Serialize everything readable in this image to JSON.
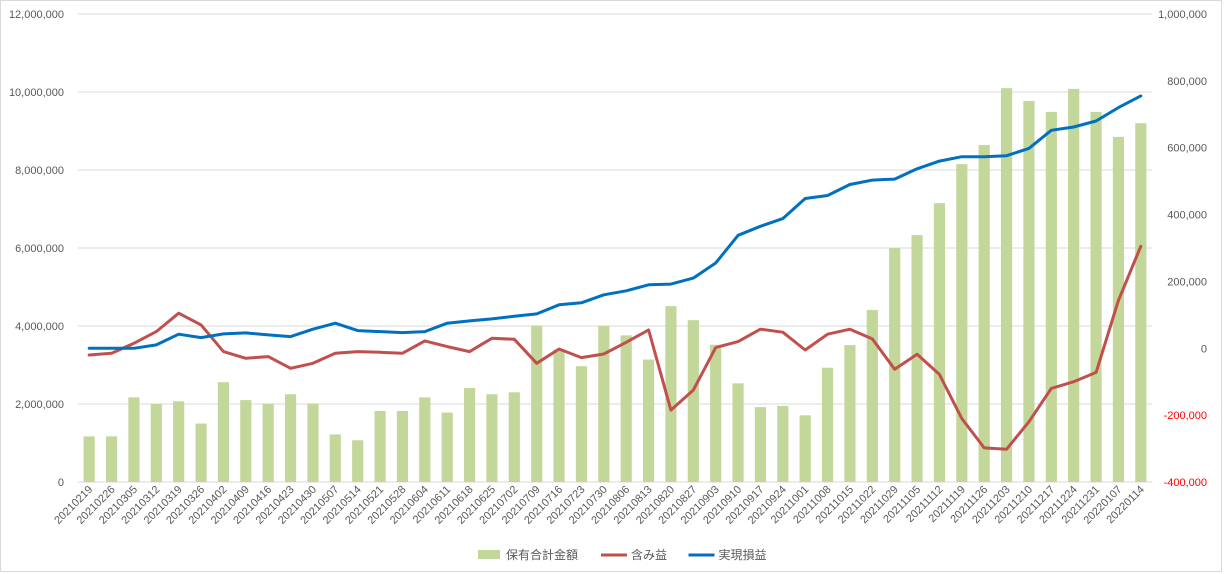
{
  "chart_data": {
    "type": "bar",
    "title": "",
    "categories": [
      "20210219",
      "20210226",
      "20210305",
      "20210312",
      "20210319",
      "20210326",
      "20210402",
      "20210409",
      "20210416",
      "20210423",
      "20210430",
      "20210507",
      "20210514",
      "20210521",
      "20210528",
      "20210604",
      "20210611",
      "20210618",
      "20210625",
      "20210702",
      "20210709",
      "20210716",
      "20210723",
      "20210730",
      "20210806",
      "20210813",
      "20210820",
      "20210827",
      "20210903",
      "20210910",
      "20210917",
      "20210924",
      "20211001",
      "20211008",
      "20211015",
      "20211022",
      "20211029",
      "20211105",
      "20211112",
      "20211119",
      "20211126",
      "20211203",
      "20211210",
      "20211217",
      "20211224",
      "20211231",
      "20220107",
      "20220114"
    ],
    "ylim_left": [
      0,
      12000000
    ],
    "yticks_left": [
      "0",
      "2,000,000",
      "4,000,000",
      "6,000,000",
      "8,000,000",
      "10,000,000",
      "12,000,000"
    ],
    "ylim_right": [
      -400000,
      1000000
    ],
    "yticks_right": [
      "-400,000",
      "-200,000",
      "0",
      "200,000",
      "400,000",
      "600,000",
      "800,000",
      "1,000,000"
    ],
    "grid": true,
    "legend_position": "bottom",
    "series": [
      {
        "name": "保有合計金額",
        "type": "bar",
        "axis": "left",
        "color": "#c4d79b",
        "values": [
          1170000,
          1170000,
          2170000,
          2000000,
          2070000,
          1500000,
          2560000,
          2100000,
          2010000,
          2250000,
          2010000,
          1220000,
          1070000,
          1820000,
          1820000,
          2170000,
          1780000,
          2410000,
          2250000,
          2300000,
          4010000,
          3400000,
          2970000,
          4010000,
          3760000,
          3140000,
          4510000,
          4150000,
          3520000,
          2530000,
          1920000,
          1950000,
          1710000,
          2930000,
          3510000,
          4410000,
          6000000,
          6330000,
          7150000,
          8150000,
          8640000,
          10100000,
          9770000,
          9490000,
          10080000,
          9490000,
          8850000,
          9200000
        ]
      },
      {
        "name": "含み益",
        "type": "line",
        "axis": "right",
        "color": "#c0504d",
        "values": [
          -20000,
          -15000,
          15000,
          50000,
          105000,
          70000,
          -10000,
          -30000,
          -25000,
          -60000,
          -45000,
          -15000,
          -10000,
          -12000,
          -15000,
          22000,
          5000,
          -10000,
          30000,
          27000,
          -45000,
          -2000,
          -28000,
          -17000,
          18000,
          55000,
          -185000,
          -125000,
          2000,
          20000,
          57000,
          48000,
          -5000,
          42000,
          57000,
          28000,
          -63000,
          -18000,
          -78000,
          -210000,
          -298000,
          -302000,
          -220000,
          -120000,
          -100000,
          -72000,
          143000,
          305000
        ]
      },
      {
        "name": "実現損益",
        "type": "line",
        "axis": "right",
        "color": "#0070c0",
        "values": [
          0,
          0,
          0,
          10000,
          42000,
          32000,
          43000,
          46000,
          40000,
          35000,
          57000,
          75000,
          53000,
          50000,
          47000,
          50000,
          75000,
          82000,
          88000,
          96000,
          103000,
          130000,
          136000,
          160000,
          172000,
          190000,
          192000,
          210000,
          255000,
          338000,
          365000,
          388000,
          448000,
          457000,
          490000,
          503000,
          506000,
          537000,
          560000,
          573000,
          573000,
          576000,
          598000,
          652000,
          662000,
          680000,
          720000,
          755000
        ]
      }
    ]
  }
}
